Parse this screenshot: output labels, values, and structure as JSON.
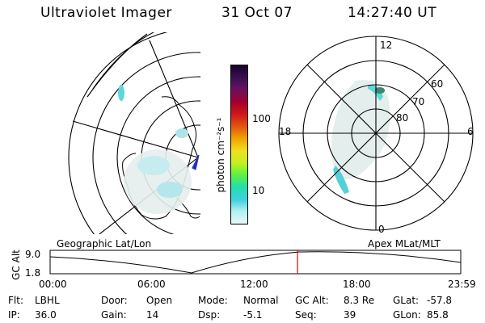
{
  "header": {
    "instrument": "Ultraviolet Imager",
    "date": "31 Oct 07",
    "time": "14:27:40 UT"
  },
  "colorbar": {
    "label": "photon cm⁻²s⁻¹",
    "ticks": [
      "100",
      "10"
    ],
    "colors": [
      "#1a0030",
      "#3a1050",
      "#6a1060",
      "#a00030",
      "#d01818",
      "#e05010",
      "#f0a000",
      "#f0e020",
      "#c0f020",
      "#60f040",
      "#20e0b0",
      "#40d0e0",
      "#b0f0f0",
      "#e8f8f8"
    ]
  },
  "left_panel": {
    "caption": "Geographic Lat/Lon"
  },
  "right_panel": {
    "caption": "Apex MLat/MLT",
    "mlt_labels": {
      "top": "12",
      "bottom": "0",
      "left": "18",
      "right": "6"
    },
    "lat_labels": [
      "60",
      "70",
      "80"
    ]
  },
  "altitude_plot": {
    "ylabel": "GC Alt",
    "yticks": [
      "9.0",
      "1.8"
    ],
    "xticks": [
      "00:00",
      "06:00",
      "12:00",
      "18:00",
      "23:59"
    ],
    "marker_time_hours": 14.46,
    "marker_color": "#e00000"
  },
  "status": {
    "row1": [
      {
        "label": "Flt:",
        "value": "LBHL"
      },
      {
        "label": "Door:",
        "value": "Open"
      },
      {
        "label": "Mode:",
        "value": "Normal"
      },
      {
        "label": "GC Alt:",
        "value": "8.3 Re"
      },
      {
        "label": "GLat:",
        "value": "-57.8"
      }
    ],
    "row2": [
      {
        "label": "IP:",
        "value": "36.0"
      },
      {
        "label": "Gain:",
        "value": "14"
      },
      {
        "label": "Dsp:",
        "value": "-5.1"
      },
      {
        "label": "Seq:",
        "value": "39"
      },
      {
        "label": "GLon:",
        "value": "85.8"
      }
    ]
  }
}
